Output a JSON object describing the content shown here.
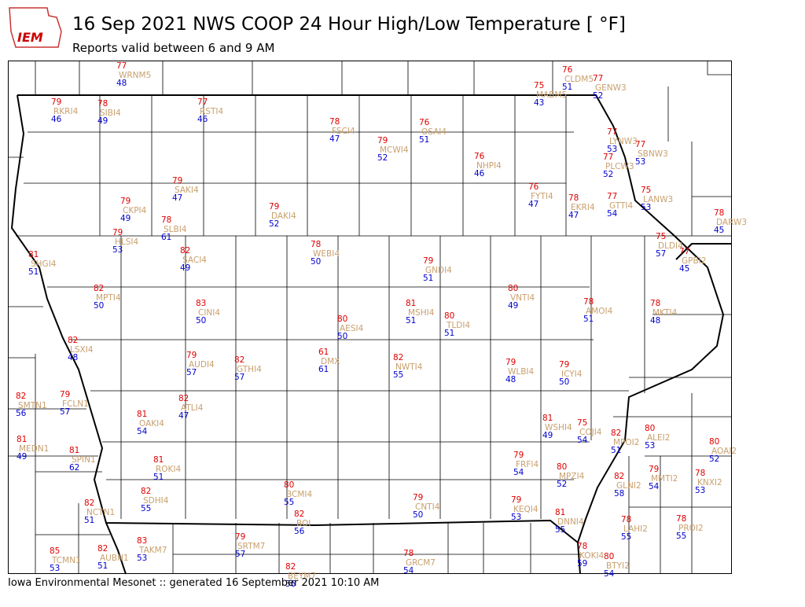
{
  "header": {
    "logo": "IEM",
    "title": "16 Sep 2021 NWS COOP 24 Hour High/Low Temperature [ °F]",
    "subtitle": "Reports valid between 6 and 9 AM"
  },
  "stations": [
    {
      "id": "WRNM5",
      "high": 77,
      "low": 48
    },
    {
      "id": "CLDM5",
      "high": 76,
      "low": 51
    },
    {
      "id": "GENW3",
      "high": 77,
      "low": 52
    },
    {
      "id": "MABM5",
      "high": 75,
      "low": 43
    },
    {
      "id": "RKRI4",
      "high": 79,
      "low": 46
    },
    {
      "id": "SIBI4",
      "high": 78,
      "low": 49
    },
    {
      "id": "RSTI4",
      "high": 77,
      "low": 46
    },
    {
      "id": "FSCI4",
      "high": 78,
      "low": 47
    },
    {
      "id": "OSAI4",
      "high": 76,
      "low": 51
    },
    {
      "id": "MCWI4",
      "high": 79,
      "low": 52
    },
    {
      "id": "NHPI4",
      "high": 76,
      "low": 46
    },
    {
      "id": "LYNW3",
      "high": 77,
      "low": 53
    },
    {
      "id": "SBNW3",
      "high": 77,
      "low": 53
    },
    {
      "id": "PLCW3",
      "high": 77,
      "low": 52
    },
    {
      "id": "SAKI4",
      "high": 79,
      "low": 47
    },
    {
      "id": "FYTI4",
      "high": 76,
      "low": 47
    },
    {
      "id": "LANW3",
      "high": 75,
      "low": 53
    },
    {
      "id": "CKPI4",
      "high": 79,
      "low": 49
    },
    {
      "id": "EKRI4",
      "high": 78,
      "low": 47
    },
    {
      "id": "GTTI4",
      "high": 77,
      "low": 54
    },
    {
      "id": "DAKI4",
      "high": 79,
      "low": 52
    },
    {
      "id": "DARW3",
      "high": 78,
      "low": 45
    },
    {
      "id": "SLBI4",
      "high": 78,
      "low": 61
    },
    {
      "id": "HLSI4",
      "high": 79,
      "low": 53
    },
    {
      "id": "DLDI4",
      "high": 75,
      "low": 57
    },
    {
      "id": "GPBI2",
      "high": 77,
      "low": 45
    },
    {
      "id": "SACI4",
      "high": 82,
      "low": 49
    },
    {
      "id": "WEBI4",
      "high": 78,
      "low": 50
    },
    {
      "id": "SHGI4",
      "high": 81,
      "low": 51
    },
    {
      "id": "GNDI4",
      "high": 79,
      "low": 51
    },
    {
      "id": "MPTI4",
      "high": 82,
      "low": 50
    },
    {
      "id": "VNTI4",
      "high": 80,
      "low": 49
    },
    {
      "id": "CINI4",
      "high": 83,
      "low": 50
    },
    {
      "id": "MSHI4",
      "high": 81,
      "low": 51
    },
    {
      "id": "AMOI4",
      "high": 78,
      "low": 51
    },
    {
      "id": "MKTI4",
      "high": 78,
      "low": 48
    },
    {
      "id": "TLDI4",
      "high": 80,
      "low": 51
    },
    {
      "id": "AESI4",
      "high": 80,
      "low": 50
    },
    {
      "id": "LSXI4",
      "high": 82,
      "low": 48
    },
    {
      "id": "DMX",
      "high": 61,
      "low": 61
    },
    {
      "id": "AUDI4",
      "high": 79,
      "low": 57
    },
    {
      "id": "GTHI4",
      "high": 82,
      "low": 57
    },
    {
      "id": "NWTI4",
      "high": 82,
      "low": 55
    },
    {
      "id": "WLBI4",
      "high": 79,
      "low": 48
    },
    {
      "id": "ICYI4",
      "high": 79,
      "low": 50
    },
    {
      "id": "SMTN1",
      "high": 82,
      "low": 56
    },
    {
      "id": "FCLN1",
      "high": 79,
      "low": 57
    },
    {
      "id": "ATLI4",
      "high": 82,
      "low": 47
    },
    {
      "id": "OAKI4",
      "high": 81,
      "low": 54
    },
    {
      "id": "WSHI4",
      "high": 81,
      "low": 49
    },
    {
      "id": "COJI4",
      "high": 75,
      "low": 54
    },
    {
      "id": "ALEI2",
      "high": 80,
      "low": 53
    },
    {
      "id": "MPOI2",
      "high": 82,
      "low": 51
    },
    {
      "id": "MEDN1",
      "high": 81,
      "low": 49
    },
    {
      "id": "AOAI2",
      "high": 80,
      "low": 52
    },
    {
      "id": "SPIN1",
      "high": 81,
      "low": 62
    },
    {
      "id": "FRFI4",
      "high": 79,
      "low": 54
    },
    {
      "id": "ROKI4",
      "high": 81,
      "low": 51
    },
    {
      "id": "MPZI4",
      "high": 80,
      "low": 52
    },
    {
      "id": "MMTI2",
      "high": 79,
      "low": 54
    },
    {
      "id": "KNXI2",
      "high": 78,
      "low": 53
    },
    {
      "id": "GLNI2",
      "high": 82,
      "low": 58
    },
    {
      "id": "BCMI4",
      "high": 80,
      "low": 55
    },
    {
      "id": "SDHI4",
      "high": 82,
      "low": 55
    },
    {
      "id": "CNTI4",
      "high": 79,
      "low": 50
    },
    {
      "id": "KEQI4",
      "high": 79,
      "low": 53
    },
    {
      "id": "NCTN1",
      "high": 82,
      "low": 51
    },
    {
      "id": "DNNI4",
      "high": 81,
      "low": 55
    },
    {
      "id": "BOI",
      "high": 82,
      "low": 56
    },
    {
      "id": "LAHI2",
      "high": 78,
      "low": 55
    },
    {
      "id": "PROI2",
      "high": 78,
      "low": 55
    },
    {
      "id": "TAKM7",
      "high": 83,
      "low": 53
    },
    {
      "id": "SRTM7",
      "high": 79,
      "low": 57
    },
    {
      "id": "TCMN1",
      "high": 85,
      "low": 53
    },
    {
      "id": "AUBN1",
      "high": 82,
      "low": 51
    },
    {
      "id": "GRCM7",
      "high": 78,
      "low": 54
    },
    {
      "id": "KOKI4",
      "high": 78,
      "low": 59
    },
    {
      "id": "BTYI2",
      "high": 80,
      "low": 54
    },
    {
      "id": "BEYM7",
      "high": 82,
      "low": 56
    }
  ],
  "footer": "Iowa Environmental Mesonet :: generated 16 September 2021 10:10 AM"
}
